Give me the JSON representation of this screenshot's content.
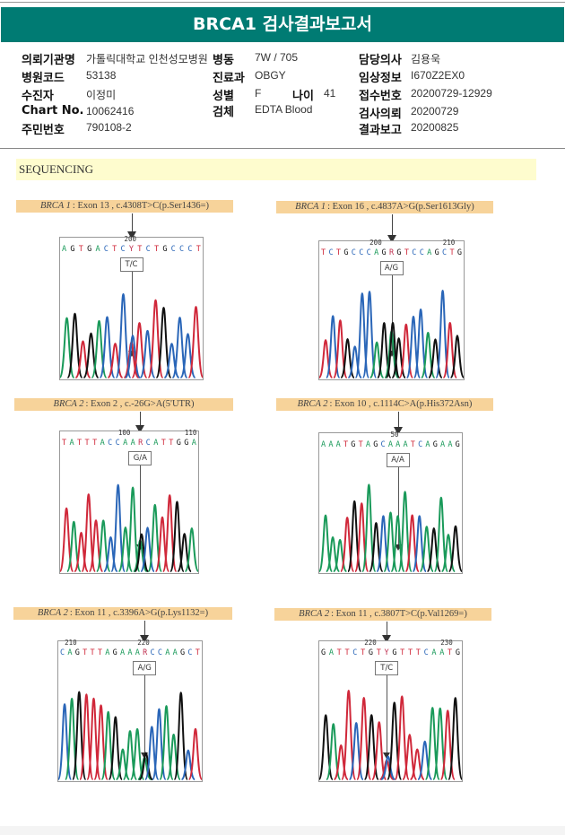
{
  "title": "BRCA1 검사결과보고서",
  "info": {
    "hospital_label": "의뢰기관명",
    "hospital": "가톨릭대학교 인천성모병원",
    "ward_label": "병동",
    "ward": "7W / 705",
    "doctor_label": "담당의사",
    "doctor": "김용욱",
    "code_label": "병원코드",
    "code": "53138",
    "dept_label": "진료과",
    "dept": "OBGY",
    "clinical_label": "임상정보",
    "clinical": "I670Z2EX0",
    "patient_label": "수진자",
    "patient": "이정미",
    "sex_label": "성별",
    "sex": "F",
    "age_label": "나이",
    "age": "41",
    "receipt_label": "접수번호",
    "receipt": "20200729-12929",
    "chart_label": "Chart No.",
    "chart": "10062416",
    "specimen_label": "검체",
    "specimen": "EDTA Blood",
    "request_label": "검사의뢰",
    "request": "20200729",
    "id_label": "주민번호",
    "id": "790108-2",
    "report_label": "결과보고",
    "report": "20200825"
  },
  "section": "SEQUENCING",
  "base_colors": {
    "A": "#1a9a5a",
    "C": "#2a66b8",
    "G": "#111111",
    "T": "#d0283a",
    "Y": "#c03050",
    "R": "#c03050"
  },
  "panels": [
    {
      "gene": "BRCA 1",
      "desc": ": Exon 13 , c.4308T>C(p.Ser1436=)",
      "seq": "AGTGACTCYTCTGCCCT",
      "positions": [
        {
          "n": "200",
          "i": 8
        }
      ],
      "genotype": "T/C",
      "mark": 8
    },
    {
      "gene": "BRCA 1",
      "desc": ": Exon 16 , c.4837A>G(p.Ser1613Gly)",
      "seq": "TCTGCCCAGRGTCCAGCTG",
      "positions": [
        {
          "n": "200",
          "i": 7
        },
        {
          "n": "210",
          "i": 17
        }
      ],
      "genotype": "A/G",
      "mark": 9
    },
    {
      "gene": "BRCA 2",
      "desc": ": Exon 2 , c.-26G>A(5'UTR)",
      "seq": "TATTTACCAARCATTGGA",
      "positions": [
        {
          "n": "100",
          "i": 8
        },
        {
          "n": "110",
          "i": 17
        }
      ],
      "genotype": "G/A",
      "mark": 10
    },
    {
      "gene": "BRCA 2",
      "desc": ": Exon 10 , c.1114C>A(p.His372Asn)",
      "seq": "AAATGTAGCAAATCAGAAG",
      "positions": [
        {
          "n": "50",
          "i": 10
        }
      ],
      "genotype": "A/A",
      "mark": 10
    },
    {
      "gene": "BRCA 2",
      "desc": ": Exon 11 , c.3396A>G(p.Lys1132=)",
      "seq": "CAGTTTAGAAARCCAAGCT",
      "positions": [
        {
          "n": "210",
          "i": 1
        },
        {
          "n": "220",
          "i": 11
        }
      ],
      "genotype": "A/G",
      "mark": 11
    },
    {
      "gene": "BRCA 2",
      "desc": ": Exon 11 , c.3807T>C(p.Val1269=)",
      "seq": "GATTCTGTYGTTTCAATG",
      "positions": [
        {
          "n": "220",
          "i": 6
        },
        {
          "n": "230",
          "i": 16
        }
      ],
      "genotype": "T/C",
      "mark": 8
    }
  ]
}
